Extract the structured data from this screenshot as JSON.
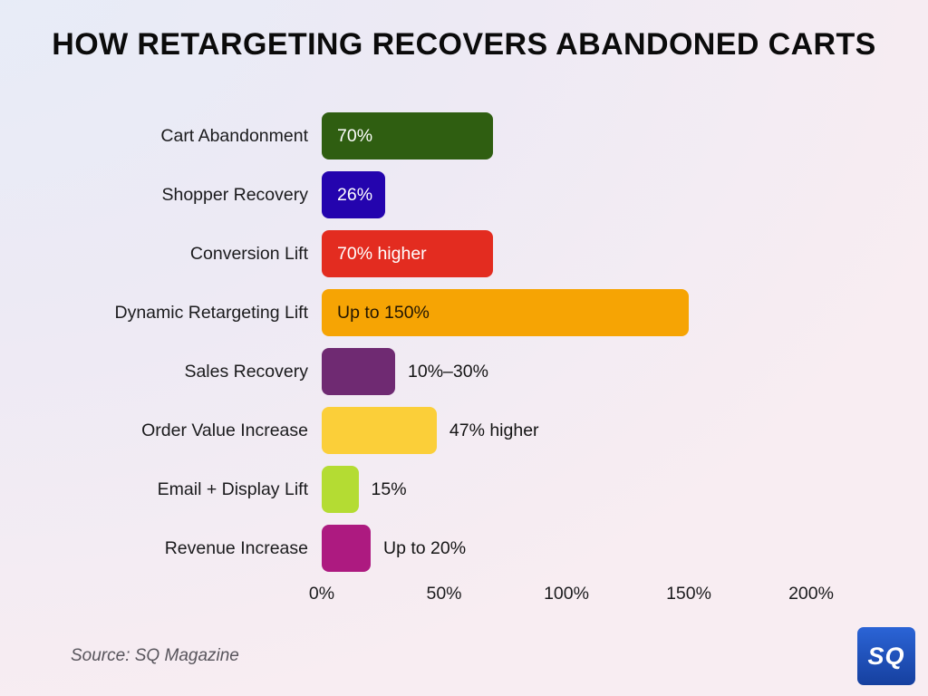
{
  "title": "HOW RETARGETING RECOVERS ABANDONED CARTS",
  "source": "Source: SQ Magazine",
  "logo": {
    "text": "SQ"
  },
  "colors": {
    "background_start": "#e6ecf8",
    "background_mid": "#edeaf4",
    "background_end": "#f8edf2",
    "title": "#0b0b0b",
    "label": "#1b1b1d",
    "source": "#57545b",
    "logo_blue_top": "#2b64d6",
    "logo_blue_bottom": "#16409f"
  },
  "chart_data": {
    "type": "bar",
    "orientation": "horizontal",
    "title": "HOW RETARGETING RECOVERS ABANDONED CARTS",
    "categories": [
      "Cart Abandonment",
      "Shopper Recovery",
      "Conversion Lift",
      "Dynamic Retargeting Lift",
      "Sales Recovery",
      "Order Value Increase",
      "Email + Display Lift",
      "Revenue Increase"
    ],
    "values": [
      70,
      26,
      70,
      150,
      30,
      47,
      15,
      20
    ],
    "value_labels": [
      "70%",
      "26%",
      "70% higher",
      "Up to 150%",
      "10%–30%",
      "47% higher",
      "15%",
      "Up to 20%"
    ],
    "value_label_placements": [
      "inside",
      "inside",
      "inside",
      "inside",
      "outside",
      "outside",
      "outside",
      "outside"
    ],
    "value_label_colors": [
      "#ffffff",
      "#ffffff",
      "#ffffff",
      "#231603",
      "#141414",
      "#141414",
      "#141414",
      "#141414"
    ],
    "bar_colors": [
      "#2f5e11",
      "#2404ae",
      "#e32c20",
      "#f6a404",
      "#6f2a72",
      "#fbcf39",
      "#b4dc33",
      "#ad1a80"
    ],
    "x_ticks": [
      "0%",
      "50%",
      "100%",
      "150%",
      "200%"
    ],
    "x_tick_values": [
      0,
      50,
      100,
      150,
      200
    ],
    "xlim": [
      0,
      200
    ],
    "grid": false,
    "legend": false
  }
}
